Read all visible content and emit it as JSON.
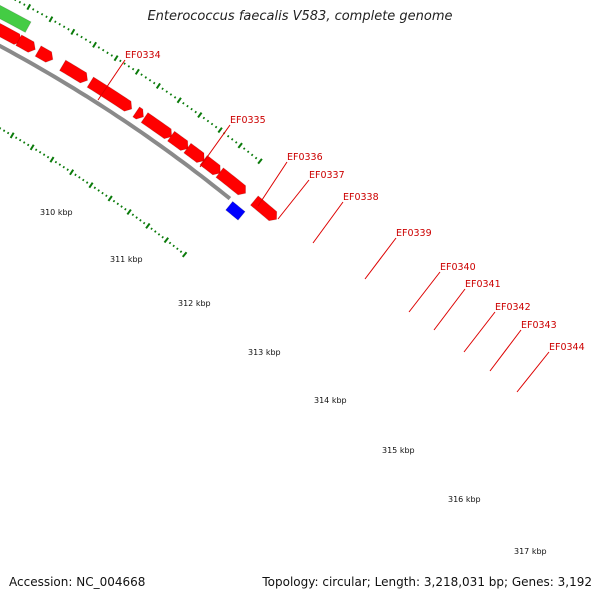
{
  "title": "Enterococcus faecalis V583, complete genome",
  "footer": {
    "accession": "Accession: NC_004668",
    "topology": "Topology: circular; Length: 3,218,031 bp; Genes: 3,192"
  },
  "colors": {
    "forward_gene": "#ff0000",
    "reverse_gene": "#00aa00",
    "other_feature": "#0000ff",
    "backbone": "#888888",
    "tick": "#006400",
    "label": "#cc0000"
  },
  "kbp_labels": [
    "310 kbp",
    "311 kbp",
    "312 kbp",
    "313 kbp",
    "314 kbp",
    "315 kbp",
    "316 kbp",
    "317 kbp"
  ],
  "genes": [
    {
      "name": "EF0334"
    },
    {
      "name": "EF0335"
    },
    {
      "name": "EF0336"
    },
    {
      "name": "EF0337"
    },
    {
      "name": "EF0338"
    },
    {
      "name": "EF0339"
    },
    {
      "name": "EF0340"
    },
    {
      "name": "EF0341"
    },
    {
      "name": "EF0342"
    },
    {
      "name": "EF0343"
    },
    {
      "name": "EF0344"
    }
  ]
}
